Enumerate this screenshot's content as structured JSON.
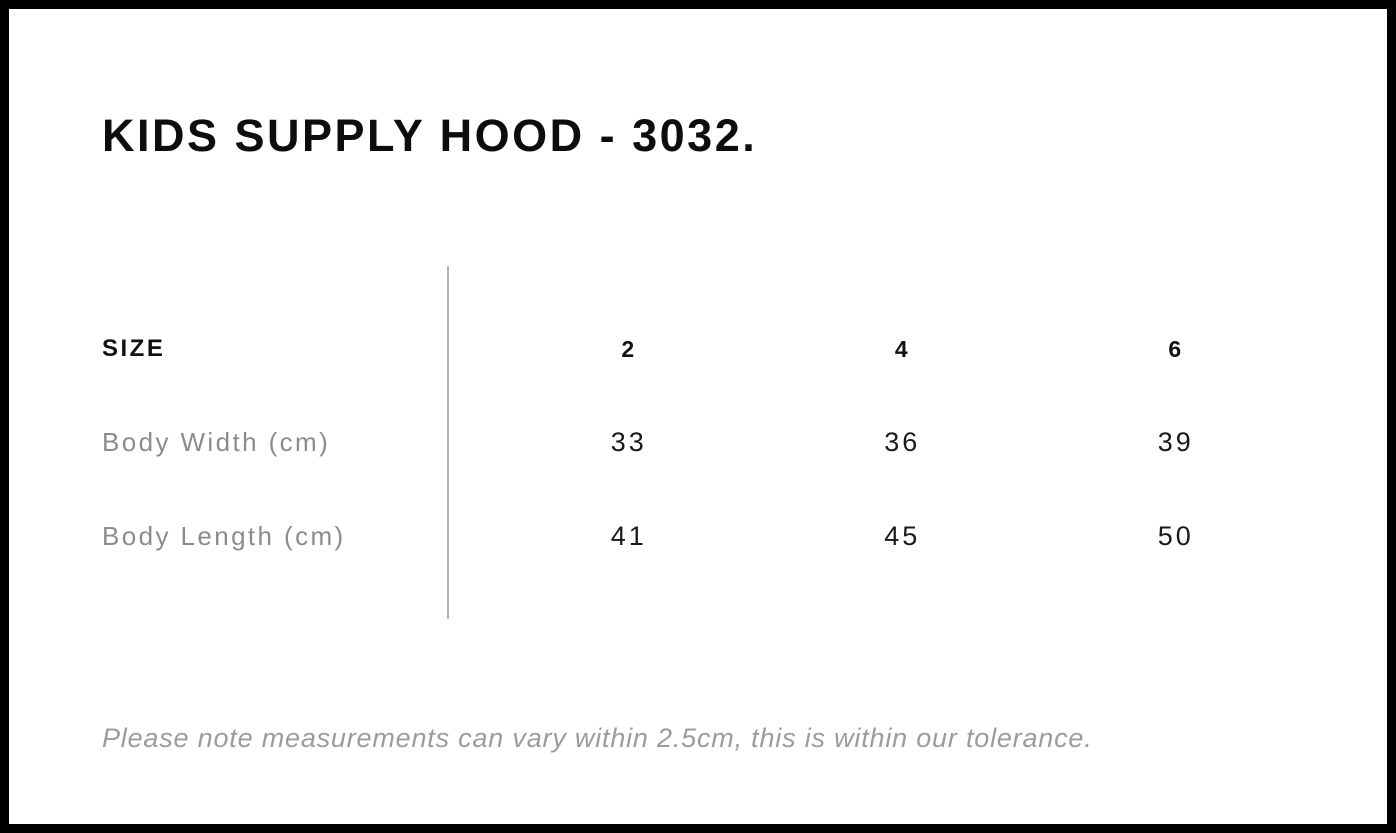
{
  "title": "KIDS SUPPLY HOOD - 3032.",
  "size_chart": {
    "header": {
      "label": "SIZE",
      "columns": [
        "2",
        "4",
        "6"
      ]
    },
    "rows": [
      {
        "label": "Body Width (cm)",
        "values": [
          "33",
          "36",
          "39"
        ]
      },
      {
        "label": "Body Length (cm)",
        "values": [
          "41",
          "45",
          "50"
        ]
      }
    ]
  },
  "note": "Please note measurements can vary within 2.5cm, this is within our tolerance.",
  "colors": {
    "frame_border": "#000000",
    "background": "#ffffff",
    "heading_text": "#0d0d0d",
    "label_gray": "#8c8c8c",
    "value_black": "#1a1a1a",
    "note_gray": "#9c9c9c",
    "divider_gray": "#b3b3b3"
  }
}
